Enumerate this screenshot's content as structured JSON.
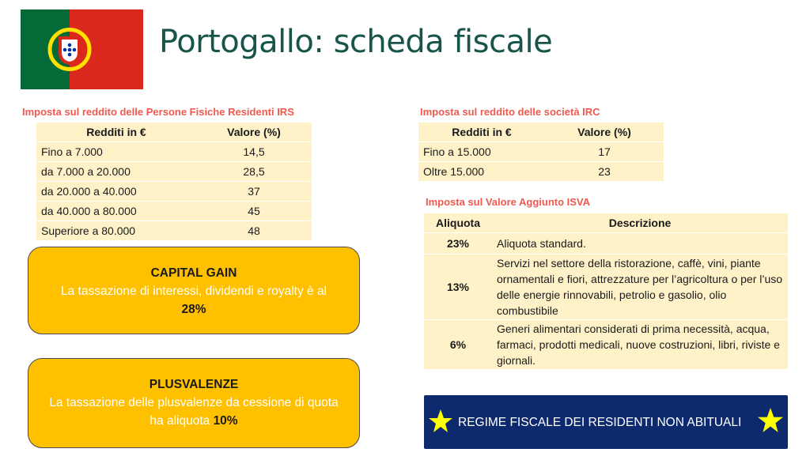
{
  "page": {
    "title": "Portogallo: scheda fiscale"
  },
  "irs": {
    "heading": "Imposta sul reddito delle Persone Fisiche Residenti IRS",
    "col1": "Redditi in €",
    "col2": "Valore (%)",
    "rows": [
      [
        "Fino a 7.000",
        "14,5"
      ],
      [
        "da 7.000 a 20.000",
        "28,5"
      ],
      [
        "da 20.000 a 40.000",
        "37"
      ],
      [
        "da 40.000 a 80.000",
        "45"
      ],
      [
        "Superiore a 80.000",
        "48"
      ]
    ]
  },
  "irc": {
    "heading": "Imposta sul reddito delle società IRC",
    "col1": "Redditi in €",
    "col2": "Valore (%)",
    "rows": [
      [
        "Fino a 15.000",
        "17"
      ],
      [
        "Oltre 15.000",
        "23"
      ]
    ]
  },
  "iva": {
    "heading": "Imposta sul Valore Aggiunto ISVA",
    "col1": "Aliquota",
    "col2": "Descrizione",
    "rows": [
      [
        "23%",
        "Aliquota standard."
      ],
      [
        "13%",
        "Servizi nel settore della ristorazione, caffè, vini, piante ornamentali e fiori, attrezzature per l’agricoltura o per l’uso delle energie rinnovabili, petrolio e gasolio, olio combustibile"
      ],
      [
        "6%",
        "Generi alimentari considerati di prima necessità, acqua, farmaci, prodotti medicali, nuove costruzioni, libri, riviste e giornali."
      ]
    ]
  },
  "capital_gain": {
    "title": "CAPITAL GAIN",
    "text": "La tassazione di interessi, dividendi e royalty è al",
    "value": "28%"
  },
  "plusvalenze": {
    "title": "PLUSVALENZE",
    "text": "La tassazione delle plusvalenze da cessione di quota ha aliquota",
    "value": "10%"
  },
  "banner": {
    "label": "REGIME FISCALE DEI RESIDENTI NON ABITUALI"
  },
  "colors": {
    "title": "#17544a",
    "section_heading": "#ef5a4f",
    "table_bg": "#fff2c9",
    "box_bg": "#ffc000",
    "banner_bg": "#0d2a6e",
    "star": "#ffff00"
  },
  "icons": {
    "flag": "portugal-flag-icon",
    "star": "star-icon"
  }
}
